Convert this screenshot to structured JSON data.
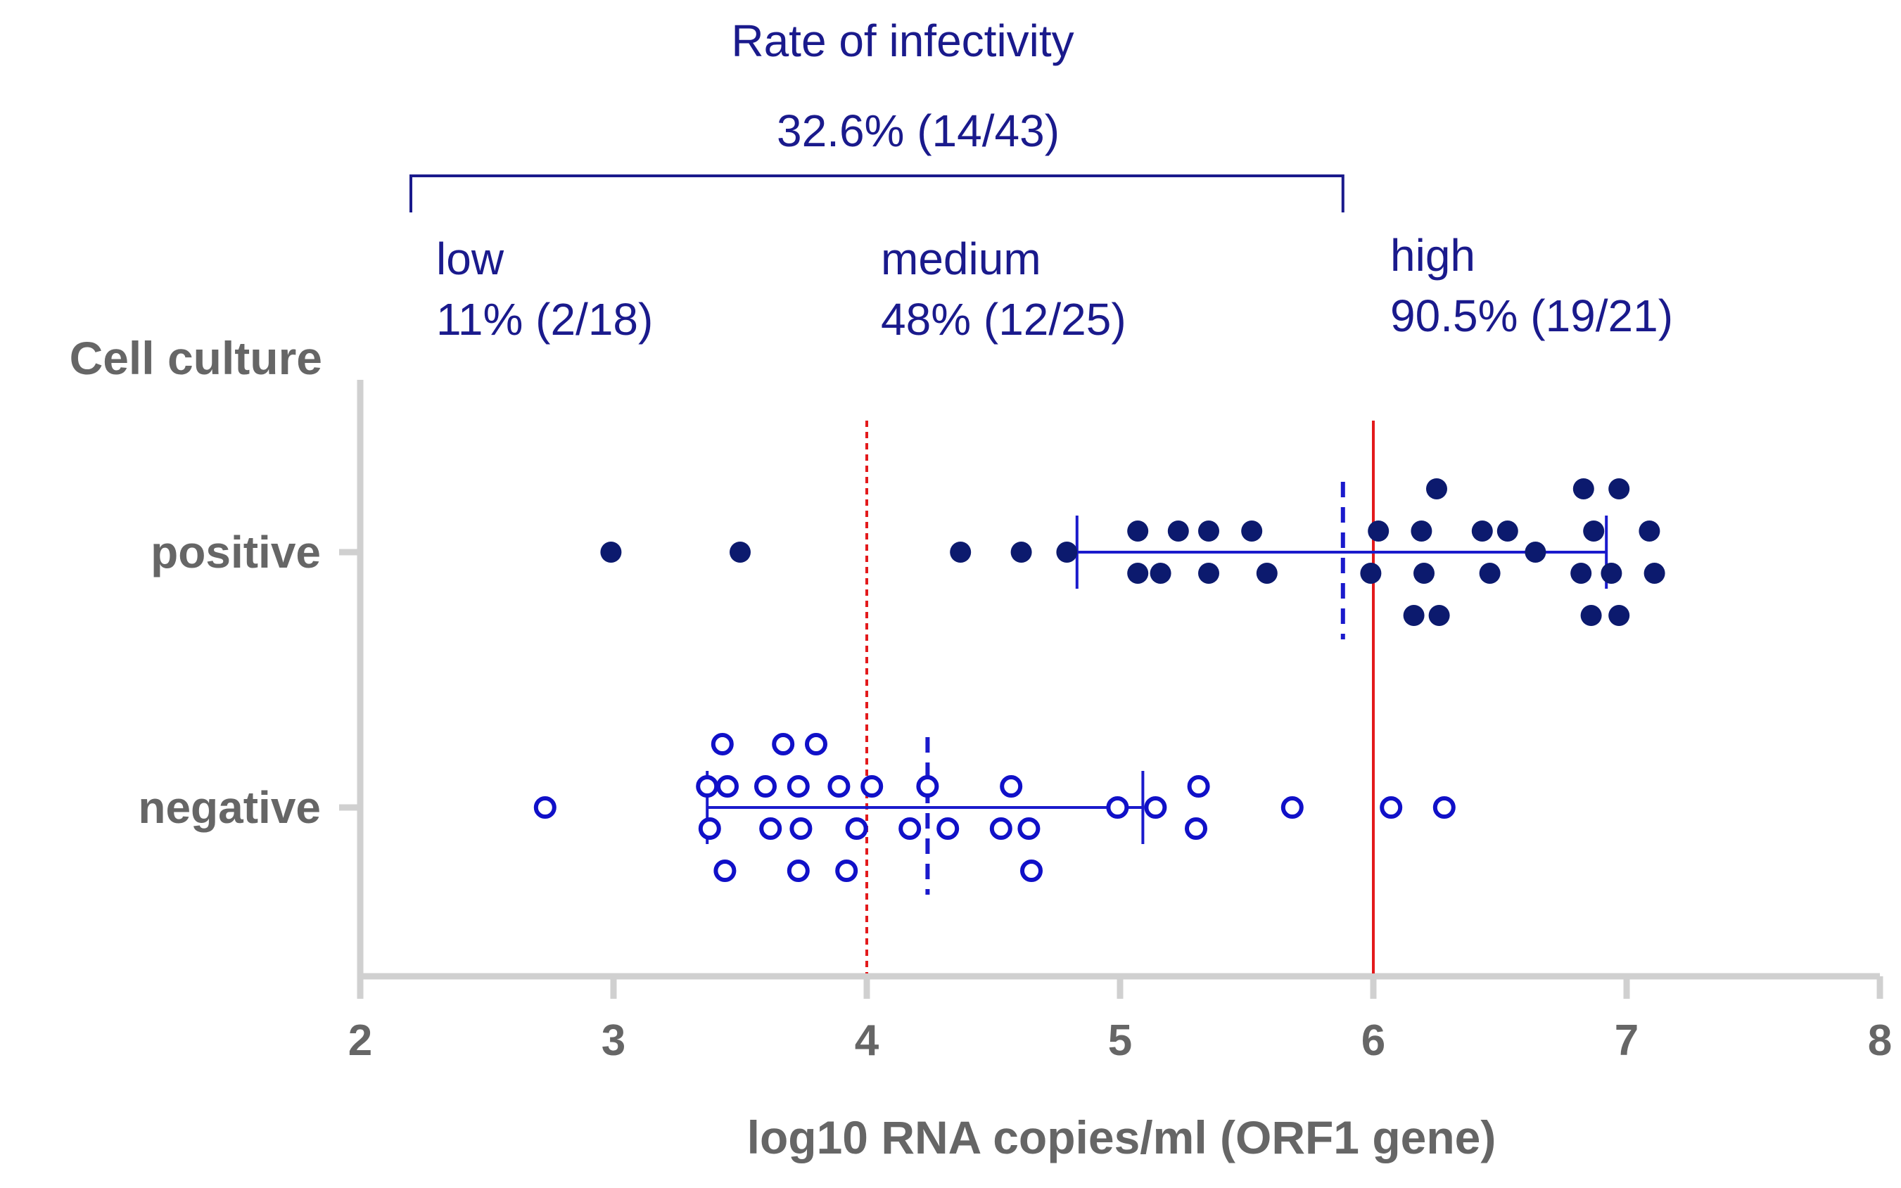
{
  "chart_data": {
    "type": "scatter",
    "y_title": "Cell culture",
    "xlabel": "log10 RNA copies/ml (ORF1 gene)",
    "xlim": [
      2,
      8
    ],
    "x_ticks": [
      "2",
      "3",
      "4",
      "5",
      "6",
      "7",
      "8"
    ],
    "categories": [
      "positive",
      "negative"
    ],
    "header": {
      "line1": "Rate of infectivity",
      "line2": "32.6% (14/43)",
      "bracket_from": 2.2,
      "bracket_to": 5.88
    },
    "zones": [
      {
        "name": "low",
        "rate": "11% (2/18)"
      },
      {
        "name": "medium",
        "rate": "48% (12/25)"
      },
      {
        "name": "high",
        "rate": "90.5% (19/21)"
      }
    ],
    "thresholds": [
      {
        "x": 4.0,
        "style": "dotted",
        "color": "#e31a1c"
      },
      {
        "x": 6.0,
        "style": "solid",
        "color": "#e31a1c"
      }
    ],
    "series": [
      {
        "name": "positive",
        "marker": "filled",
        "color": "#0c1a6e",
        "median": 5.88,
        "range": [
          4.83,
          6.92
        ],
        "points": [
          {
            "x": 2.99,
            "offset": 0
          },
          {
            "x": 3.5,
            "offset": 0
          },
          {
            "x": 4.37,
            "offset": 0
          },
          {
            "x": 4.61,
            "offset": 0
          },
          {
            "x": 4.79,
            "offset": 0
          },
          {
            "x": 5.07,
            "offset": -1
          },
          {
            "x": 5.23,
            "offset": -1
          },
          {
            "x": 5.35,
            "offset": -1
          },
          {
            "x": 5.52,
            "offset": -1
          },
          {
            "x": 5.07,
            "offset": 1
          },
          {
            "x": 5.16,
            "offset": 1
          },
          {
            "x": 5.35,
            "offset": 1
          },
          {
            "x": 5.58,
            "offset": 1
          },
          {
            "x": 6.25,
            "offset": -3
          },
          {
            "x": 6.02,
            "offset": -1
          },
          {
            "x": 6.19,
            "offset": -1
          },
          {
            "x": 6.43,
            "offset": -1
          },
          {
            "x": 6.53,
            "offset": -1
          },
          {
            "x": 6.64,
            "offset": 0
          },
          {
            "x": 5.99,
            "offset": 1
          },
          {
            "x": 6.2,
            "offset": 1
          },
          {
            "x": 6.46,
            "offset": 1
          },
          {
            "x": 6.16,
            "offset": 3
          },
          {
            "x": 6.26,
            "offset": 3
          },
          {
            "x": 6.83,
            "offset": -3
          },
          {
            "x": 6.97,
            "offset": -3
          },
          {
            "x": 6.87,
            "offset": -1
          },
          {
            "x": 7.09,
            "offset": -1
          },
          {
            "x": 6.82,
            "offset": 1
          },
          {
            "x": 6.94,
            "offset": 1
          },
          {
            "x": 7.11,
            "offset": 1
          },
          {
            "x": 6.86,
            "offset": 3
          },
          {
            "x": 6.97,
            "offset": 3
          }
        ]
      },
      {
        "name": "negative",
        "marker": "open",
        "color": "#1010c8",
        "median": 4.24,
        "range": [
          3.37,
          5.09
        ],
        "points": [
          {
            "x": 2.73,
            "offset": 0
          },
          {
            "x": 3.43,
            "offset": -3
          },
          {
            "x": 3.67,
            "offset": -3
          },
          {
            "x": 3.8,
            "offset": -3
          },
          {
            "x": 3.37,
            "offset": -1
          },
          {
            "x": 3.45,
            "offset": -1
          },
          {
            "x": 3.6,
            "offset": -1
          },
          {
            "x": 3.73,
            "offset": -1
          },
          {
            "x": 3.89,
            "offset": -1
          },
          {
            "x": 4.02,
            "offset": -1
          },
          {
            "x": 4.24,
            "offset": -1
          },
          {
            "x": 4.57,
            "offset": -1
          },
          {
            "x": 5.31,
            "offset": -1
          },
          {
            "x": 4.99,
            "offset": 0
          },
          {
            "x": 5.14,
            "offset": 0
          },
          {
            "x": 5.68,
            "offset": 0
          },
          {
            "x": 6.07,
            "offset": 0
          },
          {
            "x": 6.28,
            "offset": 0
          },
          {
            "x": 3.38,
            "offset": 1
          },
          {
            "x": 3.62,
            "offset": 1
          },
          {
            "x": 3.74,
            "offset": 1
          },
          {
            "x": 3.96,
            "offset": 1
          },
          {
            "x": 4.17,
            "offset": 1
          },
          {
            "x": 4.32,
            "offset": 1
          },
          {
            "x": 4.53,
            "offset": 1
          },
          {
            "x": 4.64,
            "offset": 1
          },
          {
            "x": 5.3,
            "offset": 1
          },
          {
            "x": 3.44,
            "offset": 3
          },
          {
            "x": 3.73,
            "offset": 3
          },
          {
            "x": 3.92,
            "offset": 3
          },
          {
            "x": 4.65,
            "offset": 3
          }
        ]
      }
    ]
  },
  "colors": {
    "axis": "#d0d0d0",
    "axis_text": "#666666",
    "header_text": "#1a1a8c",
    "range_line": "#1a1acc"
  }
}
